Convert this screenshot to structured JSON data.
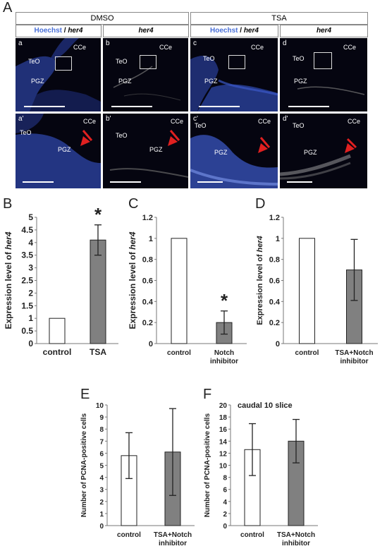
{
  "figure_letters": {
    "A": "A",
    "B": "B",
    "C": "C",
    "D": "D",
    "E": "E",
    "F": "F"
  },
  "panel_a": {
    "groups": [
      {
        "title": "DMSO",
        "col_titles": [
          {
            "hoechst": "Hoechst",
            "slash": " / ",
            "her4": "her4"
          },
          {
            "her4": "her4"
          }
        ]
      },
      {
        "title": "TSA",
        "col_titles": [
          {
            "hoechst": "Hoechst",
            "slash": " / ",
            "her4": "her4"
          },
          {
            "her4": "her4"
          }
        ]
      }
    ],
    "subpanels": [
      "a",
      "b",
      "c",
      "d",
      "a'",
      "b'",
      "c'",
      "d'"
    ],
    "region_labels": {
      "teo": "TeO",
      "cce": "CCe",
      "pgz": "PGZ"
    },
    "colors": {
      "hoechst": "#3a5fd0",
      "her4": "#1f2fa0",
      "arrow": "#e02020"
    }
  },
  "chart_data": [
    {
      "id": "B",
      "type": "bar",
      "categories": [
        "control",
        "TSA"
      ],
      "values": [
        1,
        4.1
      ],
      "error": [
        0,
        0.6
      ],
      "ylabel_prefix": "Expression level of ",
      "ylabel_gene": "her4",
      "ylim": [
        0,
        5
      ],
      "yticks": [
        "0",
        "0.5",
        "1",
        "1.5",
        "2",
        "2.5",
        "3",
        "3.5",
        "4",
        "4.5",
        "5"
      ],
      "significance": "*",
      "sig_index": 1,
      "fills": [
        "#ffffff",
        "#808080"
      ]
    },
    {
      "id": "C",
      "type": "bar",
      "categories": [
        "control",
        "Notch inhibitor"
      ],
      "category_lines": [
        [
          "control"
        ],
        [
          "Notch",
          "inhibitor"
        ]
      ],
      "values": [
        1,
        0.2
      ],
      "error": [
        0,
        0.11
      ],
      "ylabel_prefix": "Expression level of ",
      "ylabel_gene": "her4",
      "ylim": [
        0,
        1.2
      ],
      "yticks": [
        "0",
        "0.2",
        "0.4",
        "0.6",
        "0.8",
        "1",
        "1.2"
      ],
      "significance": "*",
      "sig_index": 1,
      "fills": [
        "#ffffff",
        "#808080"
      ]
    },
    {
      "id": "D",
      "type": "bar",
      "categories": [
        "control",
        "TSA+Notch inhibitor"
      ],
      "category_lines": [
        [
          "control"
        ],
        [
          "TSA+Notch",
          "inhibitor"
        ]
      ],
      "values": [
        1,
        0.7
      ],
      "error": [
        0,
        0.29
      ],
      "ylabel_prefix": "Expression level of ",
      "ylabel_gene": "her4",
      "ylim": [
        0,
        1.2
      ],
      "yticks": [
        "0",
        "0.2",
        "0.4",
        "0.6",
        "0.8",
        "1",
        "1.2"
      ],
      "fills": [
        "#ffffff",
        "#808080"
      ]
    },
    {
      "id": "E",
      "type": "bar",
      "categories": [
        "control",
        "TSA+Notch inhibitor"
      ],
      "category_lines": [
        [
          "control"
        ],
        [
          "TSA+Notch",
          "inhibitor"
        ]
      ],
      "values": [
        5.8,
        6.1
      ],
      "error": [
        1.9,
        3.6
      ],
      "ylabel": "Number of PCNA-positive cells",
      "ylim": [
        0,
        10
      ],
      "yticks": [
        "0",
        "1",
        "2",
        "3",
        "4",
        "5",
        "6",
        "7",
        "8",
        "9",
        "10"
      ],
      "fills": [
        "#ffffff",
        "#808080"
      ]
    },
    {
      "id": "F",
      "type": "bar",
      "title": "caudal 10 slice",
      "categories": [
        "control",
        "TSA+Notch inhibitor"
      ],
      "category_lines": [
        [
          "control"
        ],
        [
          "TSA+Notch",
          "inhibitor"
        ]
      ],
      "values": [
        12.6,
        14
      ],
      "error": [
        4.3,
        3.6
      ],
      "ylabel": "Number of PCNA-positive cells",
      "ylim": [
        0,
        20
      ],
      "yticks": [
        "0",
        "2",
        "4",
        "6",
        "8",
        "10",
        "12",
        "14",
        "16",
        "18",
        "20"
      ],
      "fills": [
        "#ffffff",
        "#808080"
      ]
    }
  ]
}
